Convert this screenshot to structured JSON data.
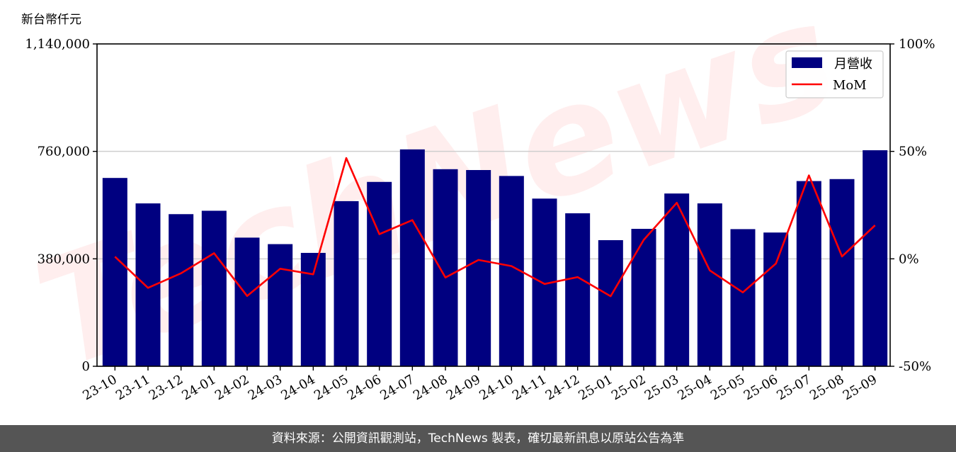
{
  "chart_data": {
    "type": "bar+line",
    "ylabel": "新台幣仟元",
    "categories": [
      "23-10",
      "23-11",
      "23-12",
      "24-01",
      "24-02",
      "24-03",
      "24-04",
      "24-05",
      "24-06",
      "24-07",
      "24-08",
      "24-09",
      "24-10",
      "24-11",
      "24-12",
      "25-01",
      "25-02",
      "25-03",
      "25-04",
      "25-05",
      "25-06",
      "25-07",
      "25-08",
      "25-09"
    ],
    "series": [
      {
        "name": "月營收",
        "type": "bar",
        "color": "#000080",
        "axis": "left",
        "values": [
          666000,
          576000,
          538000,
          550000,
          455000,
          432000,
          401000,
          584000,
          652000,
          767000,
          697000,
          694000,
          673000,
          593000,
          541000,
          446000,
          486000,
          611000,
          576000,
          485000,
          473000,
          655000,
          662000,
          764000
        ]
      },
      {
        "name": "MoM",
        "type": "line",
        "color": "#ff0000",
        "axis": "right",
        "values": [
          1.0,
          -13.5,
          -6.7,
          2.6,
          -17.3,
          -4.6,
          -7.2,
          46.9,
          11.5,
          18.0,
          -8.7,
          -0.5,
          -3.4,
          -11.7,
          -8.5,
          -17.4,
          8.8,
          26.1,
          -5.4,
          -15.6,
          -2.2,
          38.8,
          1.1,
          15.6
        ]
      }
    ],
    "ylim_left": [
      0,
      1140000
    ],
    "yticks_left": [
      0,
      380000,
      760000,
      1140000
    ],
    "ytick_labels_left": [
      "0",
      "380,000",
      "760,000",
      "1,140,000"
    ],
    "ylim_right": [
      -50,
      100
    ],
    "yticks_right": [
      -50,
      0,
      50,
      100
    ],
    "ytick_labels_right": [
      "-50%",
      "0%",
      "50%",
      "100%"
    ],
    "grid": "horizontal",
    "legend_position": "top-right",
    "legend": [
      "月營收",
      "MoM"
    ]
  },
  "watermark": "TechNews",
  "footer": {
    "text": "資料來源：公開資訊觀測站，TechNews 製表，確切最新訊息以原站公告為準"
  }
}
